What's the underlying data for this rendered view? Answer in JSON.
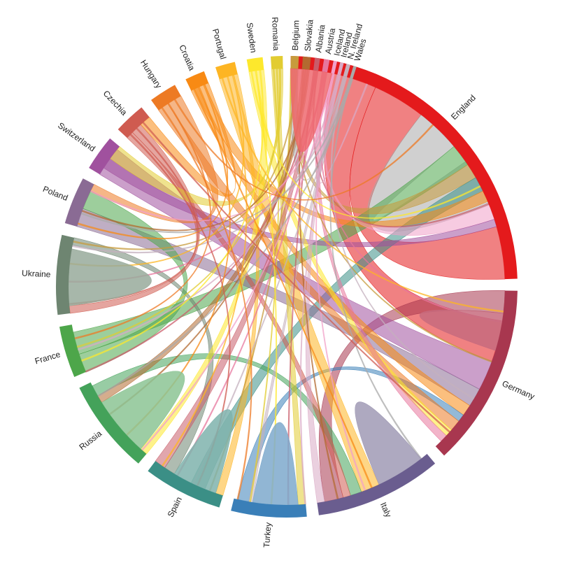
{
  "diagram": {
    "type": "chord",
    "teams": [
      {
        "name": "England",
        "color": "#e41a1c"
      },
      {
        "name": "Germany",
        "color": "#a8374f"
      },
      {
        "name": "Italy",
        "color": "#6a5d8f"
      },
      {
        "name": "Turkey",
        "color": "#3a7fb8"
      },
      {
        "name": "Spain",
        "color": "#3b8f86"
      },
      {
        "name": "Russia",
        "color": "#44a25a"
      },
      {
        "name": "France",
        "color": "#4da64a"
      },
      {
        "name": "Ukraine",
        "color": "#6e8571"
      },
      {
        "name": "Poland",
        "color": "#8a6b94"
      },
      {
        "name": "Switzerland",
        "color": "#a0519e"
      },
      {
        "name": "Czechia",
        "color": "#cf5b50"
      },
      {
        "name": "Hungary",
        "color": "#ed7a24"
      },
      {
        "name": "Croatia",
        "color": "#f88a14"
      },
      {
        "name": "Portugal",
        "color": "#fdb523"
      },
      {
        "name": "Sweden",
        "color": "#fde82c"
      },
      {
        "name": "Romania",
        "color": "#e2cc31"
      },
      {
        "name": "Belgium",
        "color": "#c79b3c"
      },
      {
        "name": "Slovakia",
        "color": "#b36a30"
      },
      {
        "name": "Albania",
        "color": "#c95c69"
      },
      {
        "name": "Austria",
        "color": "#e7779d"
      },
      {
        "name": "Iceland",
        "color": "#f1a0c8"
      },
      {
        "name": "Ireland",
        "color": "#d9a9c4"
      },
      {
        "name": "N. Ireland",
        "color": "#c4b0bd"
      },
      {
        "name": "Wales",
        "color": "#a9a9a9"
      }
    ],
    "arc_extents_deg": [
      [
        1,
        88
      ],
      [
        91,
        137
      ],
      [
        140,
        172
      ],
      [
        175,
        194
      ],
      [
        197,
        217
      ],
      [
        220,
        244
      ],
      [
        247,
        260
      ],
      [
        263,
        283
      ],
      [
        286,
        298
      ],
      [
        301,
        310
      ],
      [
        313,
        321
      ],
      [
        324,
        331
      ],
      [
        334,
        339
      ],
      [
        342,
        347
      ],
      [
        350,
        354
      ],
      [
        356,
        359
      ],
      [
        361,
        363
      ],
      [
        364,
        366
      ],
      [
        367,
        368.3
      ],
      [
        369.3,
        370.7
      ],
      [
        371.7,
        372.6
      ],
      [
        373.4,
        374.3
      ],
      [
        375,
        376
      ],
      [
        376.8,
        377.6
      ]
    ],
    "self_chords": [
      {
        "team": 0,
        "a": [
          1,
          12
        ],
        "b": [
          1,
          12
        ],
        "color": "#ef6a70"
      },
      {
        "team": 1,
        "a": [
          97,
          107
        ],
        "b": [
          97,
          107
        ],
        "color": "#c76b7e"
      },
      {
        "team": 2,
        "a": [
          142,
          155
        ],
        "b": [
          142,
          155
        ],
        "color": "#a09ab5"
      },
      {
        "team": 3,
        "a": [
          177,
          189
        ],
        "b": [
          177,
          189
        ],
        "color": "#7ea9cd"
      },
      {
        "team": 4,
        "a": [
          199,
          211
        ],
        "b": [
          199,
          211
        ],
        "color": "#7fb3ad"
      },
      {
        "team": 5,
        "a": [
          222,
          238
        ],
        "b": [
          222,
          238
        ],
        "color": "#8cc494"
      },
      {
        "team": 7,
        "a": [
          265,
          280
        ],
        "b": [
          265,
          280
        ],
        "color": "#98aa9b"
      }
    ],
    "links": [
      {
        "s": 0,
        "sa": [
          12,
          24
        ],
        "t": 1,
        "ta": [
          99,
          110
        ],
        "c": 0
      },
      {
        "s": 0,
        "sa": [
          24,
          38
        ],
        "t": 0,
        "ta": [
          74,
          88
        ],
        "c": 0
      },
      {
        "s": 0,
        "sa": [
          38,
          50
        ],
        "t": 0,
        "ta": [
          55,
          68
        ],
        "c": 23
      },
      {
        "s": 0,
        "sa": [
          50,
          56
        ],
        "t": 6,
        "ta": [
          252,
          258
        ],
        "c": 6
      },
      {
        "s": 0,
        "sa": [
          56,
          60
        ],
        "t": 16,
        "ta": [
          361,
          363
        ],
        "c": 16
      },
      {
        "s": 0,
        "sa": [
          60,
          64
        ],
        "t": 4,
        "ta": [
          202,
          206
        ],
        "c": 4
      },
      {
        "s": 0,
        "sa": [
          64,
          67
        ],
        "t": 12,
        "ta": [
          335,
          338
        ],
        "c": 12
      },
      {
        "s": 0,
        "sa": [
          68,
          72
        ],
        "t": 20,
        "ta": [
          371.7,
          372.6
        ],
        "c": 20
      },
      {
        "s": 0,
        "sa": [
          72,
          74
        ],
        "t": 9,
        "ta": [
          303,
          306
        ],
        "c": 9
      },
      {
        "s": 1,
        "sa": [
          91,
          97
        ],
        "t": 2,
        "ta": [
          165,
          170
        ],
        "c": 1
      },
      {
        "s": 1,
        "sa": [
          110,
          118
        ],
        "t": 9,
        "ta": [
          301,
          309
        ],
        "c": 9
      },
      {
        "s": 1,
        "sa": [
          118,
          123
        ],
        "t": 8,
        "ta": [
          286,
          291
        ],
        "c": 8
      },
      {
        "s": 1,
        "sa": [
          123,
          126
        ],
        "t": 12,
        "ta": [
          334,
          336
        ],
        "c": 12
      },
      {
        "s": 1,
        "sa": [
          126,
          128
        ],
        "t": 3,
        "ta": [
          190,
          193
        ],
        "c": 3
      },
      {
        "s": 1,
        "sa": [
          128,
          131
        ],
        "t": 11,
        "ta": [
          324,
          327
        ],
        "c": 11
      },
      {
        "s": 1,
        "sa": [
          131,
          133
        ],
        "t": 14,
        "ta": [
          350,
          352
        ],
        "c": 14
      },
      {
        "s": 1,
        "sa": [
          133,
          135
        ],
        "t": 19,
        "ta": [
          369.3,
          370.7
        ],
        "c": 19
      },
      {
        "s": 2,
        "sa": [
          155,
          160
        ],
        "t": 13,
        "ta": [
          342,
          346
        ],
        "c": 13
      },
      {
        "s": 2,
        "sa": [
          160,
          163
        ],
        "t": 5,
        "ta": [
          240,
          243
        ],
        "c": 5
      },
      {
        "s": 2,
        "sa": [
          163,
          165
        ],
        "t": 10,
        "ta": [
          313,
          315
        ],
        "c": 10
      },
      {
        "s": 2,
        "sa": [
          170,
          172
        ],
        "t": 21,
        "ta": [
          373.4,
          374.3
        ],
        "c": 21
      },
      {
        "s": 3,
        "sa": [
          189,
          190
        ],
        "t": 22,
        "ta": [
          375,
          376
        ],
        "c": 22
      },
      {
        "s": 3,
        "sa": [
          175,
          177
        ],
        "t": 15,
        "ta": [
          356,
          358
        ],
        "c": 15
      },
      {
        "s": 4,
        "sa": [
          197,
          199
        ],
        "t": 13,
        "ta": [
          346,
          347
        ],
        "c": 13
      },
      {
        "s": 4,
        "sa": [
          211,
          214
        ],
        "t": 7,
        "ta": [
          281,
          283
        ],
        "c": 7
      },
      {
        "s": 4,
        "sa": [
          214,
          217
        ],
        "t": 18,
        "ta": [
          367,
          368.3
        ],
        "c": 18
      },
      {
        "s": 5,
        "sa": [
          220,
          222
        ],
        "t": 14,
        "ta": [
          352,
          354
        ],
        "c": 14
      },
      {
        "s": 5,
        "sa": [
          238,
          240
        ],
        "t": 17,
        "ta": [
          364,
          366
        ],
        "c": 17
      },
      {
        "s": 6,
        "sa": [
          247,
          252
        ],
        "t": 8,
        "ta": [
          291,
          296
        ],
        "c": 6
      },
      {
        "s": 7,
        "sa": [
          263,
          265
        ],
        "t": 10,
        "ta": [
          315,
          318
        ],
        "c": 10
      },
      {
        "s": 8,
        "sa": [
          296,
          298
        ],
        "t": 11,
        "ta": [
          327,
          331
        ],
        "c": 11
      },
      {
        "s": 9,
        "sa": [
          306,
          310
        ],
        "t": 15,
        "ta": [
          358,
          359
        ],
        "c": 15
      },
      {
        "s": 10,
        "sa": [
          318,
          321
        ],
        "t": 12,
        "ta": [
          338,
          339
        ],
        "c": 12
      },
      {
        "s": 16,
        "sa": [
          361,
          363
        ],
        "t": 23,
        "ta": [
          376.8,
          377.6
        ],
        "c": 23
      }
    ]
  }
}
